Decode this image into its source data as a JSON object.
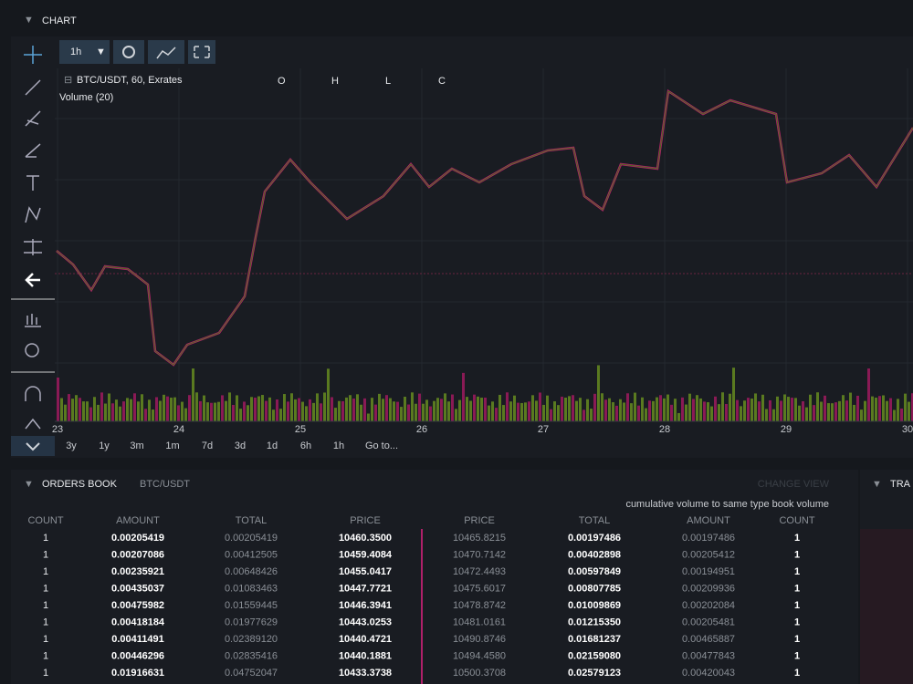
{
  "header": {
    "title": "CHART"
  },
  "toolbar": {
    "interval": "1h"
  },
  "legend": {
    "symbol": "BTC/USDT, 60, Exrates",
    "open": "O",
    "high": "H",
    "low": "L",
    "close": "C",
    "volume": "Volume (20)"
  },
  "x_axis": {
    "labels": [
      "23",
      "24",
      "25",
      "26",
      "27",
      "28",
      "29",
      "30"
    ]
  },
  "ranges": [
    "3y",
    "1y",
    "3m",
    "1m",
    "7d",
    "3d",
    "1d",
    "6h",
    "1h",
    "Go to..."
  ],
  "orders_book": {
    "title": "ORDERS BOOK",
    "pair": "BTC/USDT",
    "change_view": "CHANGE VIEW",
    "note": "cumulative volume to same type book volume",
    "bid_headers": [
      "COUNT",
      "AMOUNT",
      "TOTAL",
      "PRICE"
    ],
    "ask_headers": [
      "PRICE",
      "TOTAL",
      "AMOUNT",
      "COUNT"
    ],
    "bids": [
      [
        "1",
        "0.00205419",
        "0.00205419",
        "10460.3500"
      ],
      [
        "1",
        "0.00207086",
        "0.00412505",
        "10459.4084"
      ],
      [
        "1",
        "0.00235921",
        "0.00648426",
        "10455.0417"
      ],
      [
        "1",
        "0.00435037",
        "0.01083463",
        "10447.7721"
      ],
      [
        "1",
        "0.00475982",
        "0.01559445",
        "10446.3941"
      ],
      [
        "1",
        "0.00418184",
        "0.01977629",
        "10443.0253"
      ],
      [
        "1",
        "0.00411491",
        "0.02389120",
        "10440.4721"
      ],
      [
        "1",
        "0.00446296",
        "0.02835416",
        "10440.1881"
      ],
      [
        "1",
        "0.01916631",
        "0.04752047",
        "10433.3738"
      ]
    ],
    "asks": [
      [
        "10465.8215",
        "0.00197486",
        "0.00197486",
        "1"
      ],
      [
        "10470.7142",
        "0.00402898",
        "0.00205412",
        "1"
      ],
      [
        "10472.4493",
        "0.00597849",
        "0.00194951",
        "1"
      ],
      [
        "10475.6017",
        "0.00807785",
        "0.00209936",
        "1"
      ],
      [
        "10478.8742",
        "0.01009869",
        "0.00202084",
        "1"
      ],
      [
        "10481.0161",
        "0.01215350",
        "0.00205481",
        "1"
      ],
      [
        "10490.8746",
        "0.01681237",
        "0.00465887",
        "1"
      ],
      [
        "10494.4580",
        "0.02159080",
        "0.00477843",
        "1"
      ],
      [
        "10500.3708",
        "0.02579123",
        "0.00420043",
        "1"
      ]
    ]
  },
  "trades": {
    "title": "TRA"
  }
}
